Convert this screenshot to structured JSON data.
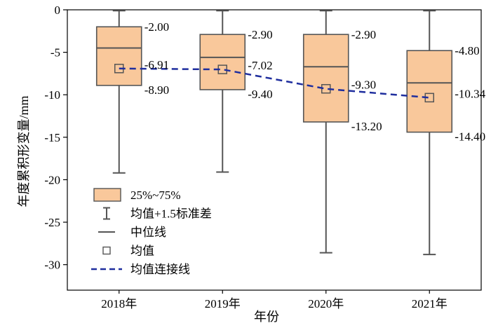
{
  "chart_data": {
    "type": "box",
    "xlabel": "年份",
    "ylabel": "年度累积形变量/mm",
    "categories": [
      "2018年",
      "2019年",
      "2020年",
      "2021年"
    ],
    "ylim": [
      -33,
      0
    ],
    "yticks": [
      0,
      -5,
      -10,
      -15,
      -20,
      -25,
      -30
    ],
    "ytick_labels": [
      "0",
      "-5",
      "-10",
      "-15",
      "-20",
      "-25",
      "-30"
    ],
    "boxes": [
      {
        "q1": -8.9,
        "median": -4.5,
        "q3": -2.0,
        "whisker_low": -19.2,
        "whisker_high": -0.1,
        "mean": -6.91,
        "labels": {
          "q3": "-2.00",
          "mean": "-6.91",
          "q1": "-8.90"
        }
      },
      {
        "q1": -9.4,
        "median": -5.6,
        "q3": -2.9,
        "whisker_low": -19.1,
        "whisker_high": -0.1,
        "mean": -7.02,
        "labels": {
          "q3": "-2.90",
          "mean": "-7.02",
          "q1": "-9.40"
        }
      },
      {
        "q1": -13.2,
        "median": -6.7,
        "q3": -2.9,
        "whisker_low": -28.6,
        "whisker_high": -0.1,
        "mean": -9.3,
        "labels": {
          "q3": "-2.90",
          "mean": "-9.30",
          "q1": "-13.20"
        }
      },
      {
        "q1": -14.4,
        "median": -8.6,
        "q3": -4.8,
        "whisker_low": -28.8,
        "whisker_high": -0.1,
        "mean": -10.34,
        "labels": {
          "q3": "-4.80",
          "mean": "-10.34",
          "q1": "-14.40"
        }
      }
    ],
    "legend": {
      "placement": "bottom-left",
      "items": [
        {
          "key": "box",
          "label": "25%~75%"
        },
        {
          "key": "whisker",
          "label": "均值+1.5标准差"
        },
        {
          "key": "median",
          "label": "中位线"
        },
        {
          "key": "mean",
          "label": "均值"
        },
        {
          "key": "mean_line",
          "label": "均值连接线"
        }
      ]
    },
    "colors": {
      "box_fill": "#F9C89B",
      "box_stroke": "#555555",
      "mean_line": "#1F2E9E",
      "axis": "#000000",
      "text": "#000000"
    }
  }
}
